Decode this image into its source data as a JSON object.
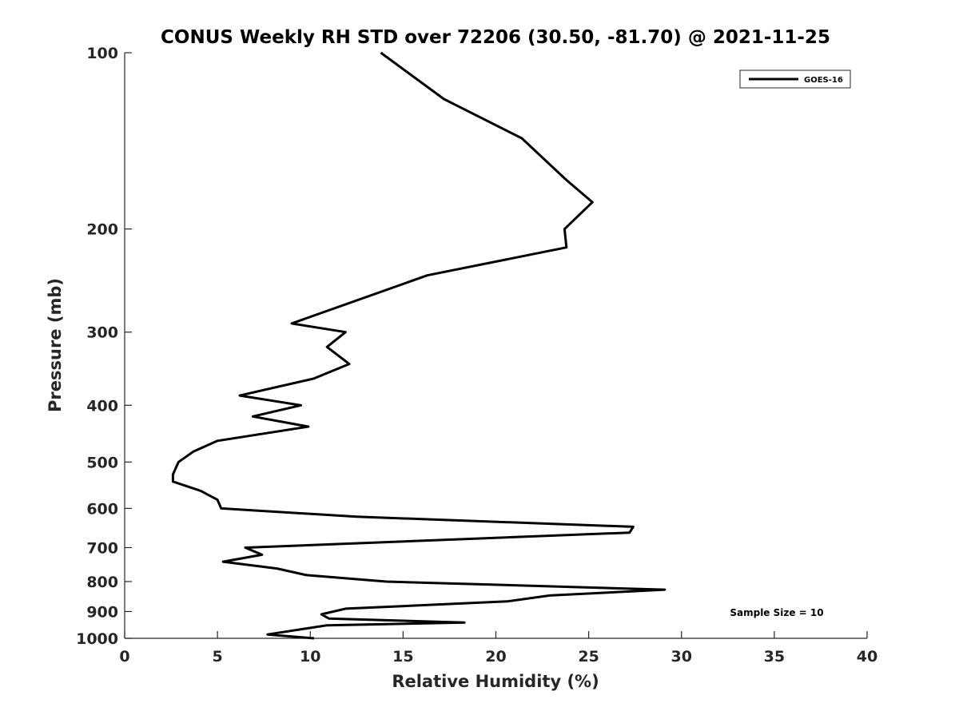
{
  "chart_data": {
    "type": "line",
    "title": "CONUS Weekly RH STD over 72206 (30.50, -81.70) @ 2021-11-25",
    "xlabel": "Relative Humidity (%)",
    "ylabel": "Pressure (mb)",
    "xlim": [
      0,
      40
    ],
    "ylim": [
      100,
      1000
    ],
    "yscale": "log",
    "y_reversed": true,
    "grid": false,
    "legend_position": "top-right",
    "x_ticks": [
      "0",
      "5",
      "10",
      "15",
      "20",
      "25",
      "30",
      "35",
      "40"
    ],
    "y_ticks": [
      "100",
      "200",
      "300",
      "400",
      "500",
      "600",
      "700",
      "800",
      "900",
      "1000"
    ],
    "annotation": "Sample Size = 10",
    "series": [
      {
        "name": "GOES-16",
        "color": "#000000",
        "x": [
          13.8,
          17.2,
          21.4,
          23.8,
          25.2,
          23.7,
          23.8,
          16.3,
          9.0,
          11.9,
          10.9,
          12.1,
          10.2,
          6.2,
          9.5,
          6.9,
          9.9,
          5.0,
          3.7,
          2.9,
          2.6,
          2.6,
          4.1,
          5.0,
          5.2,
          12.5,
          27.4,
          27.2,
          6.5,
          7.4,
          5.3,
          8.2,
          9.8,
          14.1,
          29.1,
          22.9,
          20.6,
          11.9,
          10.6,
          11.0,
          18.3,
          10.9,
          7.7,
          10.2
        ],
        "y": [
          100,
          120,
          140,
          165,
          180,
          200,
          215,
          240,
          290,
          300,
          318,
          340,
          360,
          385,
          400,
          418,
          435,
          460,
          480,
          500,
          525,
          540,
          560,
          580,
          600,
          620,
          645,
          660,
          700,
          720,
          740,
          760,
          780,
          800,
          826,
          845,
          865,
          890,
          910,
          925,
          940,
          950,
          985,
          1000
        ]
      }
    ]
  }
}
